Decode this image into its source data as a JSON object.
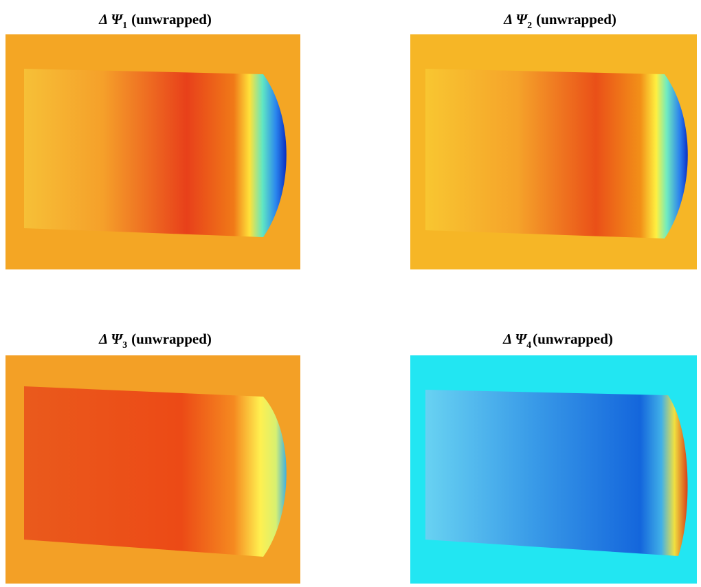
{
  "panels": [
    {
      "title": {
        "symbol": "Δ Ψ",
        "subscript": "1",
        "label": "(unwrapped)"
      }
    },
    {
      "title": {
        "symbol": "Δ Ψ",
        "subscript": "2",
        "label": "(unwrapped)"
      }
    },
    {
      "title": {
        "symbol": "Δ Ψ",
        "subscript": "3",
        "label": "(unwrapped)"
      }
    },
    {
      "title": {
        "symbol": "Δ Ψ",
        "subscript": "4",
        "label": "(unwrapped)"
      }
    }
  ]
}
